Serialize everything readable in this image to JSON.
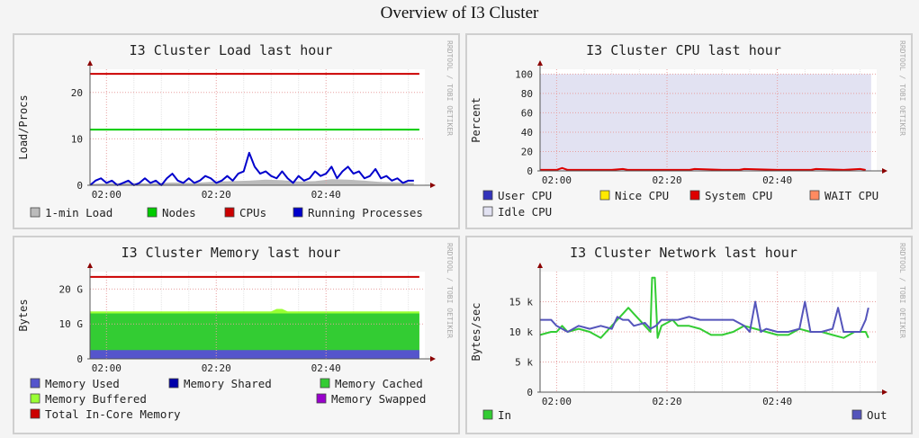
{
  "page": {
    "title": "Overview of I3 Cluster"
  },
  "watermark": "RRDTOOL / TOBI OETIKER",
  "chart_data": [
    {
      "id": "load",
      "type": "area",
      "title": "I3 Cluster Load last hour",
      "ylabel": "Load/Procs",
      "xlabel": "",
      "x_ticks": [
        {
          "v": 0,
          "label": "02:00"
        },
        {
          "v": 20,
          "label": "02:20"
        },
        {
          "v": 40,
          "label": "02:40"
        }
      ],
      "y_ticks": [
        {
          "v": 0,
          "label": "0"
        },
        {
          "v": 10,
          "label": "10"
        },
        {
          "v": 20,
          "label": "20"
        }
      ],
      "xlim": [
        -3,
        58
      ],
      "ylim": [
        0,
        25
      ],
      "grid": true,
      "legend": [
        {
          "label": "1-min Load",
          "color": "#bbbbbb"
        },
        {
          "label": "Nodes",
          "color": "#00cc00"
        },
        {
          "label": "CPUs",
          "color": "#cc0000"
        },
        {
          "label": "Running Processes",
          "color": "#0000cc"
        }
      ],
      "series": [
        {
          "name": "CPUs",
          "kind": "line",
          "color": "#cc0000",
          "width": 2,
          "x": [
            -3,
            57
          ],
          "y": [
            24,
            24
          ]
        },
        {
          "name": "Nodes",
          "kind": "line",
          "color": "#00cc00",
          "width": 2,
          "x": [
            -3,
            57
          ],
          "y": [
            12,
            12
          ]
        },
        {
          "name": "1-min Load",
          "kind": "area",
          "color": "#bbbbbb",
          "x": [
            -3,
            0,
            4,
            8,
            12,
            16,
            20,
            23,
            26,
            29,
            32,
            35,
            38,
            41,
            44,
            47,
            50,
            53,
            56
          ],
          "y": [
            0.3,
            0.4,
            0.5,
            0.4,
            0.6,
            0.5,
            0.8,
            0.9,
            1.0,
            1.2,
            1.1,
            0.8,
            0.9,
            1.3,
            1.2,
            1.0,
            0.7,
            0.6,
            0.5
          ]
        },
        {
          "name": "Running Processes",
          "kind": "line",
          "color": "#0000cc",
          "width": 2,
          "x": [
            -3,
            -2,
            -1,
            0,
            1,
            2,
            3,
            4,
            5,
            6,
            7,
            8,
            9,
            10,
            11,
            12,
            13,
            14,
            15,
            16,
            17,
            18,
            19,
            20,
            21,
            22,
            23,
            24,
            25,
            26,
            27,
            28,
            29,
            30,
            31,
            32,
            33,
            34,
            35,
            36,
            37,
            38,
            39,
            40,
            41,
            42,
            43,
            44,
            45,
            46,
            47,
            48,
            49,
            50,
            51,
            52,
            53,
            54,
            55,
            56
          ],
          "y": [
            0,
            1,
            1.5,
            0.5,
            1,
            0,
            0.5,
            1,
            0,
            0.5,
            1.5,
            0.5,
            1,
            0,
            1.5,
            2.5,
            1,
            0.5,
            1.5,
            0.5,
            1,
            2,
            1.5,
            0.5,
            1,
            2,
            1,
            2.5,
            3,
            7,
            4,
            2.5,
            3,
            2,
            1.5,
            3,
            1.5,
            0.5,
            2,
            1,
            1.5,
            3,
            2,
            2.5,
            4,
            1.5,
            3,
            4,
            2.5,
            3,
            1.5,
            2,
            3.5,
            1.5,
            2,
            1,
            1.5,
            0.5,
            1,
            1
          ]
        }
      ]
    },
    {
      "id": "cpu",
      "type": "area",
      "title": "I3 Cluster CPU last hour",
      "ylabel": "Percent",
      "xlabel": "",
      "x_ticks": [
        {
          "v": 0,
          "label": "02:00"
        },
        {
          "v": 20,
          "label": "02:20"
        },
        {
          "v": 40,
          "label": "02:40"
        }
      ],
      "y_ticks": [
        {
          "v": 0,
          "label": "0"
        },
        {
          "v": 20,
          "label": "20"
        },
        {
          "v": 40,
          "label": "40"
        },
        {
          "v": 60,
          "label": "60"
        },
        {
          "v": 80,
          "label": "80"
        },
        {
          "v": 100,
          "label": "100"
        }
      ],
      "xlim": [
        -3,
        58
      ],
      "ylim": [
        0,
        105
      ],
      "grid": true,
      "legend": [
        {
          "label": "User CPU",
          "color": "#3333bb"
        },
        {
          "label": "Nice CPU",
          "color": "#ffea00"
        },
        {
          "label": "System CPU",
          "color": "#dd0000"
        },
        {
          "label": "WAIT CPU",
          "color": "#ff8a60"
        },
        {
          "label": "Idle CPU",
          "color": "#e2e2f2"
        }
      ],
      "series": [
        {
          "name": "Idle CPU",
          "kind": "area",
          "color": "#e2e2f2",
          "x": [
            -3,
            57
          ],
          "y": [
            100,
            100
          ]
        },
        {
          "name": "System CPU",
          "kind": "line",
          "color": "#dd0000",
          "width": 2,
          "x": [
            -3,
            0,
            1,
            2,
            5,
            10,
            12,
            13,
            20,
            24,
            25,
            30,
            33,
            34,
            40,
            46,
            47,
            52,
            55,
            56
          ],
          "y": [
            1,
            1,
            3,
            1,
            1,
            1,
            2,
            1,
            1,
            1,
            2,
            1,
            1,
            2,
            1,
            1,
            2,
            1,
            2,
            1
          ]
        }
      ]
    },
    {
      "id": "mem",
      "type": "area",
      "title": "I3 Cluster Memory last hour",
      "ylabel": "Bytes",
      "xlabel": "",
      "x_ticks": [
        {
          "v": 0,
          "label": "02:00"
        },
        {
          "v": 20,
          "label": "02:20"
        },
        {
          "v": 40,
          "label": "02:40"
        }
      ],
      "y_ticks": [
        {
          "v": 0,
          "label": "0"
        },
        {
          "v": 10,
          "label": "10 G"
        },
        {
          "v": 20,
          "label": "20 G"
        }
      ],
      "xlim": [
        -3,
        58
      ],
      "ylim": [
        0,
        25
      ],
      "grid": true,
      "legend": [
        {
          "label": "Memory Used",
          "color": "#5555cc"
        },
        {
          "label": "Memory Shared",
          "color": "#0000aa"
        },
        {
          "label": "Memory Cached",
          "color": "#33cc33"
        },
        {
          "label": "Memory Buffered",
          "color": "#99ff33"
        },
        {
          "label": "Memory Swapped",
          "color": "#9900cc"
        },
        {
          "label": "Total In-Core Memory",
          "color": "#cc0000"
        }
      ],
      "series": [
        {
          "name": "Memory Buffered",
          "kind": "area",
          "color": "#99ff33",
          "x": [
            -3,
            30,
            31,
            32,
            33,
            57
          ],
          "y": [
            13.6,
            13.6,
            14.3,
            14.3,
            13.6,
            13.6
          ]
        },
        {
          "name": "Memory Cached",
          "kind": "area",
          "color": "#33cc33",
          "x": [
            -3,
            57
          ],
          "y": [
            13,
            13
          ]
        },
        {
          "name": "Memory Used",
          "kind": "area",
          "color": "#5555cc",
          "x": [
            -3,
            57
          ],
          "y": [
            2.5,
            2.5
          ]
        },
        {
          "name": "Total In-Core Memory",
          "kind": "line",
          "color": "#cc0000",
          "width": 2,
          "x": [
            -3,
            57
          ],
          "y": [
            23.5,
            23.5
          ]
        }
      ]
    },
    {
      "id": "net",
      "type": "line",
      "title": "I3 Cluster Network last hour",
      "ylabel": "Bytes/sec",
      "xlabel": "",
      "x_ticks": [
        {
          "v": 0,
          "label": "02:00"
        },
        {
          "v": 20,
          "label": "02:20"
        },
        {
          "v": 40,
          "label": "02:40"
        }
      ],
      "y_ticks": [
        {
          "v": 0,
          "label": "0"
        },
        {
          "v": 5,
          "label": "5 k"
        },
        {
          "v": 10,
          "label": "10 k"
        },
        {
          "v": 15,
          "label": "15 k"
        }
      ],
      "xlim": [
        -3,
        58
      ],
      "ylim": [
        0,
        20
      ],
      "grid": true,
      "legend": [
        {
          "label": "In",
          "color": "#33cc33"
        },
        {
          "label": "Out",
          "color": "#5555bb"
        }
      ],
      "series": [
        {
          "name": "In",
          "kind": "line",
          "color": "#33cc33",
          "width": 2,
          "x": [
            -3,
            -1,
            0,
            1,
            2,
            4,
            6,
            7,
            8,
            9,
            10,
            11,
            12,
            13,
            14,
            15,
            16,
            17,
            17.3,
            17.8,
            18.3,
            19,
            20,
            21,
            22,
            24,
            26,
            28,
            30,
            32,
            34,
            36,
            38,
            40,
            42,
            44,
            46,
            48,
            50,
            52,
            54,
            55,
            56,
            56.5
          ],
          "y": [
            9.5,
            10,
            10,
            11,
            10,
            10.5,
            10,
            9.5,
            9,
            10,
            11,
            12,
            13,
            14,
            13,
            12,
            11,
            10,
            19,
            19,
            9,
            11,
            11.5,
            12,
            11,
            11,
            10.5,
            9.5,
            9.5,
            10,
            11,
            10.5,
            10,
            9.5,
            9.5,
            10.5,
            10,
            10,
            9.5,
            9,
            10,
            10,
            10,
            9
          ]
        },
        {
          "name": "Out",
          "kind": "line",
          "color": "#5555bb",
          "width": 2,
          "x": [
            -3,
            -1,
            0,
            1,
            2,
            4,
            6,
            8,
            10,
            11,
            12,
            13,
            14,
            16,
            17,
            18,
            19,
            20,
            22,
            24,
            26,
            28,
            30,
            32,
            34,
            35,
            36,
            37,
            38,
            40,
            42,
            44,
            45,
            46,
            47,
            48,
            50,
            51,
            52,
            54,
            55,
            56,
            56.5
          ],
          "y": [
            12,
            12,
            11,
            10.5,
            10,
            11,
            10.5,
            11,
            10.5,
            12.5,
            12,
            12,
            11,
            11.5,
            10.5,
            11,
            12,
            12,
            12,
            12.5,
            12,
            12,
            12,
            12,
            11,
            10,
            15,
            10,
            10.5,
            10,
            10,
            10.5,
            15,
            10,
            10,
            10,
            10.5,
            14,
            10,
            10,
            10,
            12,
            14
          ]
        }
      ]
    }
  ]
}
